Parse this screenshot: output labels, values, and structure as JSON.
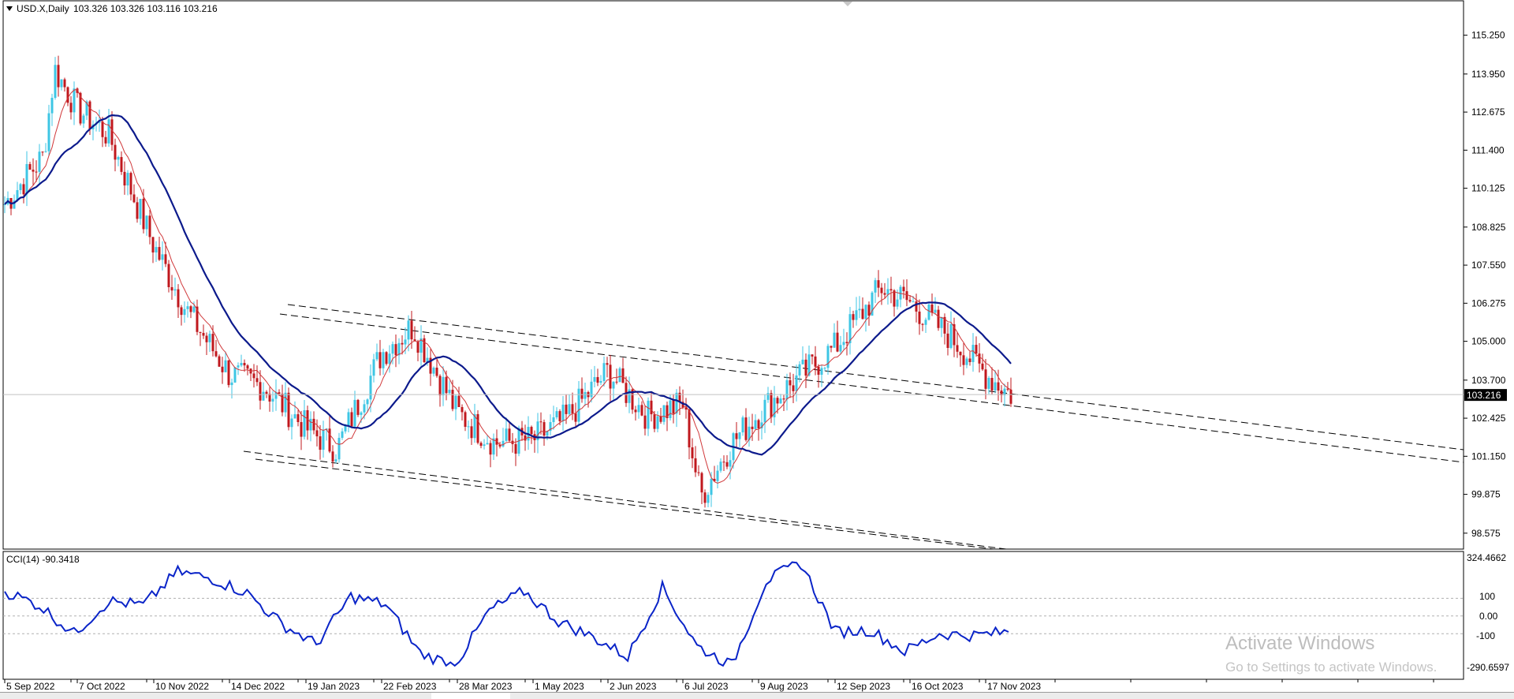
{
  "header": {
    "symbol": "USD.X,Daily",
    "ohlc": "103.326 103.326 103.116 103.216",
    "last_price": "103.216"
  },
  "indicator": {
    "label": "CCI(14) -90.3418",
    "top_label": "324.4662",
    "bottom_label": "-290.6597",
    "levels": [
      "100",
      "0.00",
      "-100"
    ]
  },
  "watermark": {
    "line1": "Activate Windows",
    "line2": "Go to Settings to activate Windows."
  },
  "chart_data": [
    {
      "type": "candlestick",
      "title": "USD.X,Daily",
      "y_ticks": [
        "115.250",
        "113.950",
        "112.675",
        "111.400",
        "110.125",
        "108.825",
        "107.550",
        "106.275",
        "105.000",
        "103.700",
        "102.425",
        "101.150",
        "99.875",
        "98.575"
      ],
      "x_ticks": [
        "5 Sep 2022",
        "7 Oct 2022",
        "10 Nov 2022",
        "14 Dec 2022",
        "19 Jan 2023",
        "22 Feb 2023",
        "28 Mar 2023",
        "1 May 2023",
        "2 Jun 2023",
        "6 Jul 2023",
        "9 Aug 2023",
        "12 Sep 2023",
        "16 Oct 2023",
        "17 Nov 2023"
      ],
      "ylim": [
        98.2,
        115.9
      ],
      "current_price": 103.216,
      "series_close": [
        {
          "date": "5 Sep 2022",
          "close": 109.6
        },
        {
          "date": "22 Sep 2022",
          "close": 111.2
        },
        {
          "date": "27 Sep 2022",
          "close": 114.1
        },
        {
          "date": "7 Oct 2022",
          "close": 112.8
        },
        {
          "date": "21 Oct 2022",
          "close": 111.9
        },
        {
          "date": "10 Nov 2022",
          "close": 108.2
        },
        {
          "date": "25 Nov 2022",
          "close": 106.0
        },
        {
          "date": "14 Dec 2022",
          "close": 103.9
        },
        {
          "date": "30 Dec 2022",
          "close": 103.5
        },
        {
          "date": "19 Jan 2023",
          "close": 102.1
        },
        {
          "date": "2 Feb 2023",
          "close": 101.4
        },
        {
          "date": "22 Feb 2023",
          "close": 104.6
        },
        {
          "date": "8 Mar 2023",
          "close": 105.5
        },
        {
          "date": "28 Mar 2023",
          "close": 102.6
        },
        {
          "date": "14 Apr 2023",
          "close": 101.6
        },
        {
          "date": "1 May 2023",
          "close": 101.7
        },
        {
          "date": "15 May 2023",
          "close": 102.4
        },
        {
          "date": "2 Jun 2023",
          "close": 104.0
        },
        {
          "date": "20 Jun 2023",
          "close": 102.5
        },
        {
          "date": "6 Jul 2023",
          "close": 102.9
        },
        {
          "date": "14 Jul 2023",
          "close": 99.8
        },
        {
          "date": "28 Jul 2023",
          "close": 101.6
        },
        {
          "date": "9 Aug 2023",
          "close": 102.6
        },
        {
          "date": "24 Aug 2023",
          "close": 103.6
        },
        {
          "date": "12 Sep 2023",
          "close": 104.8
        },
        {
          "date": "3 Oct 2023",
          "close": 106.8
        },
        {
          "date": "16 Oct 2023",
          "close": 106.3
        },
        {
          "date": "3 Nov 2023",
          "close": 105.1
        },
        {
          "date": "17 Nov 2023",
          "close": 103.9
        },
        {
          "date": "28 Nov 2023",
          "close": 103.2
        }
      ]
    },
    {
      "type": "line",
      "title": "CCI(14) -90.3418",
      "y_ticks": [
        "324.4662",
        "100",
        "0.00",
        "-100",
        "-290.6597"
      ],
      "ylim": [
        -290.6597,
        324.4662
      ],
      "series": [
        {
          "name": "CCI(14)",
          "values": [
            140,
            60,
            -100,
            85,
            60,
            250,
            210,
            130,
            -45,
            -160,
            110,
            65,
            -210,
            -280,
            30,
            140,
            -30,
            -120,
            -230,
            160,
            -170,
            -280,
            200,
            300,
            -90,
            -80,
            -200,
            -100,
            -110,
            -90
          ]
        }
      ]
    }
  ]
}
